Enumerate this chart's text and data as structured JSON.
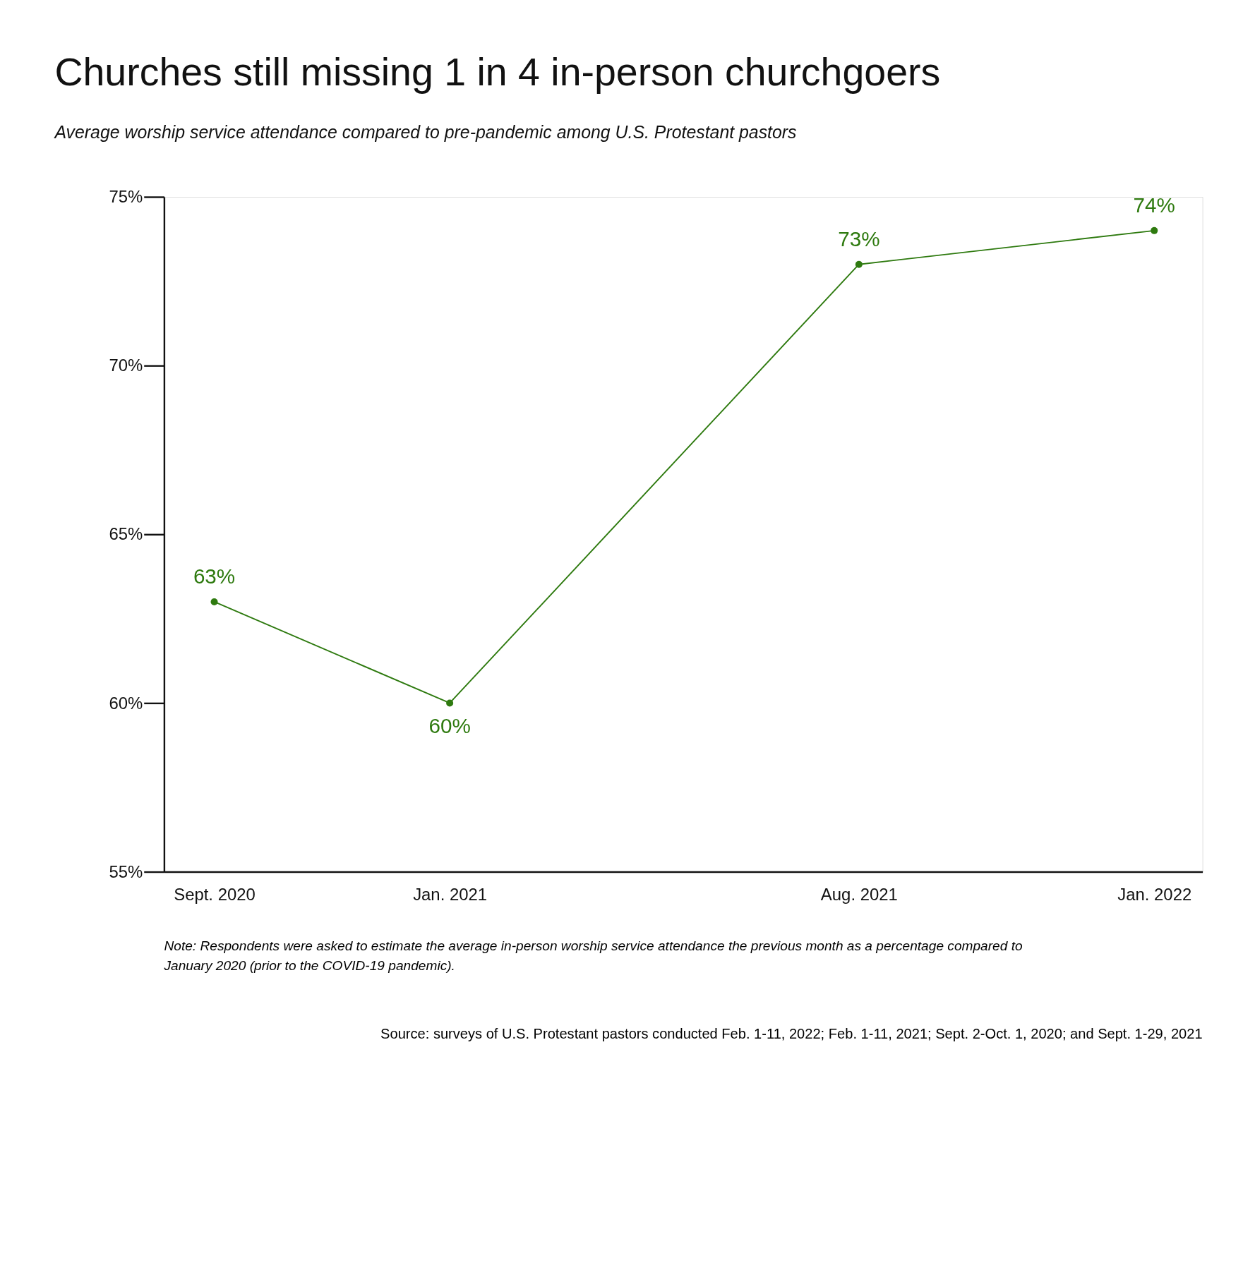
{
  "chart_data": {
    "type": "line",
    "title": "Churches still missing 1 in 4 in-person churchgoers",
    "subtitle": "Average worship service attendance compared to pre-pandemic among U.S. Protestant pastors",
    "x": [
      "2020-09",
      "2021-01",
      "2021-08",
      "2022-01"
    ],
    "series": [
      {
        "color": "#2e7a0f",
        "values": [
          63,
          60,
          73,
          74
        ],
        "value_labels": [
          "63%",
          "60%",
          "73%",
          "74%"
        ]
      }
    ],
    "xlim": [
      "2020-08-06",
      "2022-01-26"
    ],
    "xticks": [
      {
        "value": "2020-09",
        "label": "Sept. 2020"
      },
      {
        "value": "2021-01",
        "label": "Jan. 2021"
      },
      {
        "value": "2021-08",
        "label": "Aug. 2021"
      },
      {
        "value": "2022-01",
        "label": "Jan. 2022"
      }
    ],
    "ylim": [
      55,
      75
    ],
    "yticks": [
      {
        "value": 55,
        "label": "55%"
      },
      {
        "value": 60,
        "label": "60%"
      },
      {
        "value": 65,
        "label": "65%"
      },
      {
        "value": 70,
        "label": "70%"
      },
      {
        "value": 75,
        "label": "75%"
      }
    ],
    "grid": false,
    "marker": "circle",
    "line_style": "solid",
    "annotations": [
      "Note: Respondents were asked to estimate the average in-person worship service attendance the previous month as a percentage compared to January 2020 (prior to the COVID-19 pandemic).",
      "Source: surveys of U.S. Protestant pastors conducted Feb. 1-11, 2022; Feb. 1-11, 2021; Sept. 2-Oct. 1, 2020; and Sept. 1-29, 2021"
    ]
  }
}
